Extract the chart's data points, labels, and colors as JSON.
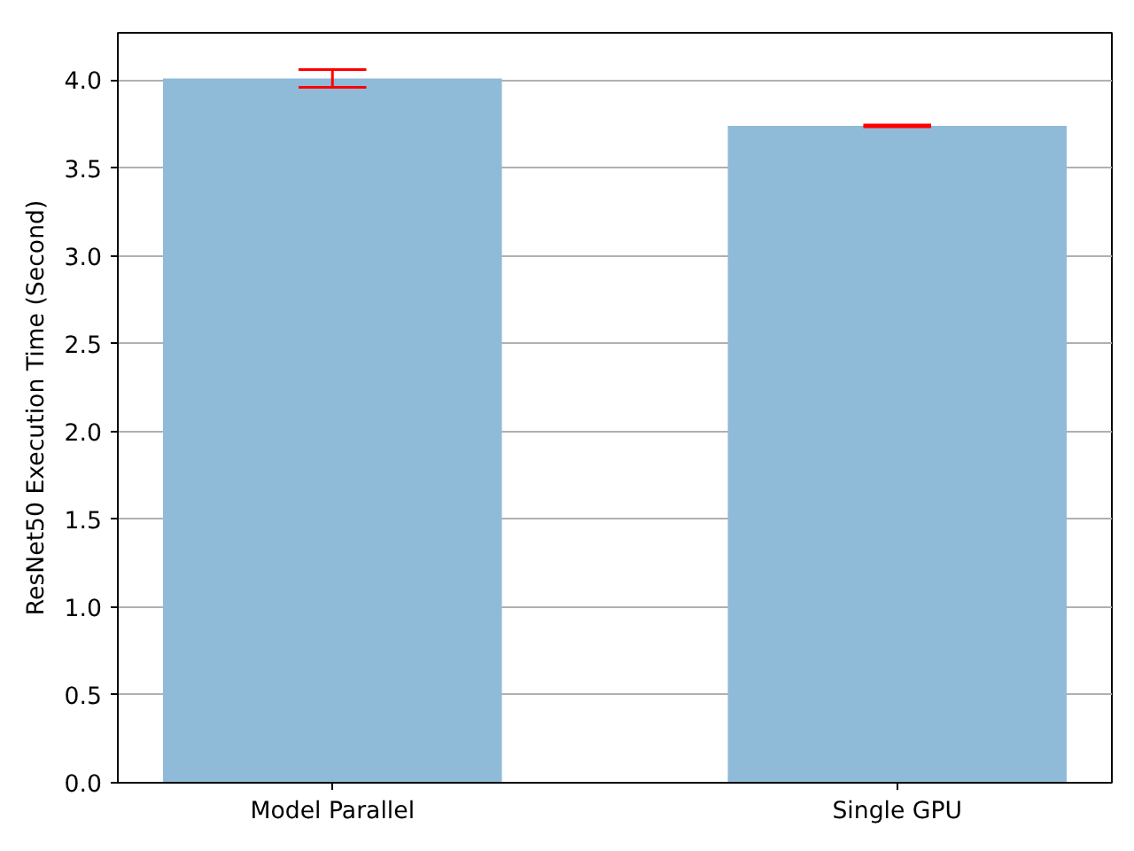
{
  "chart_data": {
    "type": "bar",
    "ylabel": "ResNet50 Execution Time (Second)",
    "categories": [
      "Model Parallel",
      "Single GPU"
    ],
    "series": [
      {
        "color": "#8fbbd9",
        "values": [
          4.01,
          3.74
        ],
        "errors": [
          0.05,
          0.005
        ]
      }
    ],
    "ylim": [
      0,
      4.27
    ],
    "yticks": [
      {
        "value": 0,
        "label": "0.0"
      },
      {
        "value": 0.5,
        "label": "0.5"
      },
      {
        "value": 1,
        "label": "1.0"
      },
      {
        "value": 1.5,
        "label": "1.5"
      },
      {
        "value": 2,
        "label": "2.0"
      },
      {
        "value": 2.5,
        "label": "2.5"
      },
      {
        "value": 3,
        "label": "3.0"
      },
      {
        "value": 3.5,
        "label": "3.5"
      },
      {
        "value": 4,
        "label": "4.0"
      }
    ],
    "grid": "y"
  }
}
